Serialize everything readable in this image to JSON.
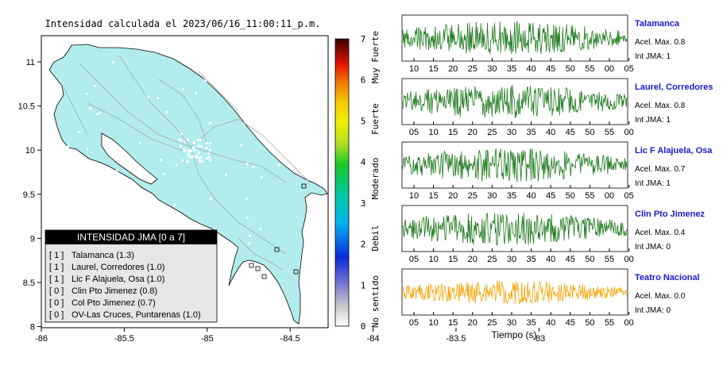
{
  "map": {
    "title": "Intensidad calculada el 2023/06/16_11:00:11_p.m.",
    "x_ticks": [
      "-86",
      "-85.5",
      "-85",
      "-84.5",
      "-84",
      "-83.5",
      "-83"
    ],
    "y_ticks": [
      "11",
      "10.5",
      "10",
      "9.5",
      "9",
      "8.5",
      "8"
    ],
    "xlim": [
      -86,
      -82.7
    ],
    "ylim": [
      8,
      11.3
    ]
  },
  "legend": {
    "title": "INTENSIDAD JMA [0 a 7]",
    "entries": [
      {
        "badge": "[ 1 ]",
        "text": "Talamanca (1.3)"
      },
      {
        "badge": "[ 1 ]",
        "text": "Laurel, Corredores (1.0)"
      },
      {
        "badge": "[ 1 ]",
        "text": "Lic F Alajuela, Osa (1.0)"
      },
      {
        "badge": "[ 0 ]",
        "text": "Clin Pto Jimenez (0.8)"
      },
      {
        "badge": "[ 0 ]",
        "text": "Col Pto Jimenez (0.7)"
      },
      {
        "badge": "[ 0 ]",
        "text": "OV-Las Cruces, Puntarenas (1.0)"
      }
    ]
  },
  "colorbar": {
    "ticks": [
      "0",
      "1",
      "2",
      "3",
      "4",
      "5",
      "6",
      "7"
    ],
    "categories": [
      "No sentido",
      "Debil",
      "Moderado",
      "Fuerte",
      "Muy Fuerte"
    ]
  },
  "stations": [
    {
      "name": "Talamanca",
      "accel": "Acel. Max. 0.8",
      "jma": "Int JMA: 1",
      "ticks": [
        "10",
        "15",
        "20",
        "25",
        "30",
        "35",
        "40",
        "45",
        "50",
        "55",
        "00",
        "05"
      ],
      "color": "#1d7a1d",
      "seed": 3
    },
    {
      "name": "Laurel, Corredores",
      "accel": "Acel. Max. 0.8",
      "jma": "Int JMA: 1",
      "ticks": [
        "05",
        "10",
        "15",
        "20",
        "25",
        "30",
        "35",
        "40",
        "45",
        "50",
        "55",
        "00"
      ],
      "color": "#1d7a1d",
      "seed": 7
    },
    {
      "name": "Lic F Alajuela, Osa",
      "accel": "Acel. Max. 0.7",
      "jma": "Int JMA: 1",
      "ticks": [
        "10",
        "15",
        "20",
        "25",
        "30",
        "35",
        "40",
        "45",
        "50",
        "55",
        "00",
        "05"
      ],
      "color": "#1d7a1d",
      "seed": 11
    },
    {
      "name": "Clin Pto Jimenez",
      "accel": "Acel. Max. 0.4",
      "jma": "Int JMA: 0",
      "ticks": [
        "05",
        "10",
        "15",
        "20",
        "25",
        "30",
        "35",
        "40",
        "45",
        "50",
        "55",
        "00"
      ],
      "color": "#1d7a1d",
      "seed": 19
    },
    {
      "name": "Teatro Nacional",
      "accel": "Acel. Max. 0.0",
      "jma": "Int JMA: 0",
      "ticks": [
        "05",
        "10",
        "15",
        "20",
        "25",
        "30",
        "35",
        "40",
        "45",
        "50",
        "55",
        "00"
      ],
      "color": "#f5a300",
      "seed": 23
    }
  ],
  "xlabel": "Tiempo (s)",
  "chart_data": [
    {
      "type": "heatmap",
      "title": "Intensidad calculada el 2023/06/16_11:00:11_p.m.",
      "xlim": [
        -86,
        -82.7
      ],
      "ylim": [
        8,
        11.3
      ],
      "colorbar_range": [
        0,
        7
      ],
      "note_values": [
        {
          "station": "Talamanca",
          "intensity": 1.3
        },
        {
          "station": "Laurel, Corredores",
          "intensity": 1.0
        },
        {
          "station": "Lic F Alajuela, Osa",
          "intensity": 1.0
        },
        {
          "station": "Clin Pto Jimenez",
          "intensity": 0.8
        },
        {
          "station": "Col Pto Jimenez",
          "intensity": 0.7
        },
        {
          "station": "OV-Las Cruces, Puntarenas",
          "intensity": 1.0
        }
      ]
    },
    {
      "type": "line",
      "xlabel": "Tiempo (s)",
      "series": [
        {
          "name": "Talamanca",
          "accel_max": 0.8,
          "int_jma": 1
        },
        {
          "name": "Laurel, Corredores",
          "accel_max": 0.8,
          "int_jma": 1
        },
        {
          "name": "Lic F Alajuela, Osa",
          "accel_max": 0.7,
          "int_jma": 1
        },
        {
          "name": "Clin Pto Jimenez",
          "accel_max": 0.4,
          "int_jma": 0
        },
        {
          "name": "Teatro Nacional",
          "accel_max": 0.0,
          "int_jma": 0
        }
      ]
    }
  ]
}
